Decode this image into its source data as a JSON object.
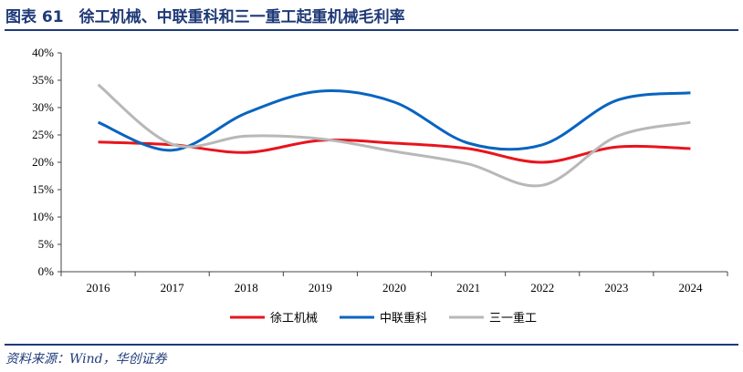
{
  "title": "图表 61　徐工机械、中联重科和三一重工起重机械毛利率",
  "source": "资料来源：Wind，华创证券",
  "chart_data": {
    "type": "line",
    "title": "徐工机械、中联重科和三一重工起重机械毛利率",
    "x": [
      "2016",
      "2017",
      "2018",
      "2019",
      "2020",
      "2021",
      "2022",
      "2023",
      "2024"
    ],
    "yticks": [
      "0%",
      "5%",
      "10%",
      "15%",
      "20%",
      "25%",
      "30%",
      "35%",
      "40%"
    ],
    "ylim": [
      0,
      40
    ],
    "legend_position": "bottom",
    "series": [
      {
        "name": "徐工机械",
        "color": "#e8141c",
        "values": [
          23.7,
          23.2,
          21.8,
          24.0,
          23.5,
          22.5,
          20.0,
          22.8,
          22.5
        ]
      },
      {
        "name": "中联重科",
        "color": "#0864c0",
        "values": [
          27.3,
          22.2,
          29.0,
          33.0,
          31.0,
          23.5,
          23.2,
          31.3,
          32.7
        ]
      },
      {
        "name": "三一重工",
        "color": "#b8b8b8",
        "values": [
          34.2,
          23.3,
          24.8,
          24.3,
          22.0,
          19.7,
          15.8,
          24.7,
          27.3
        ]
      }
    ]
  }
}
